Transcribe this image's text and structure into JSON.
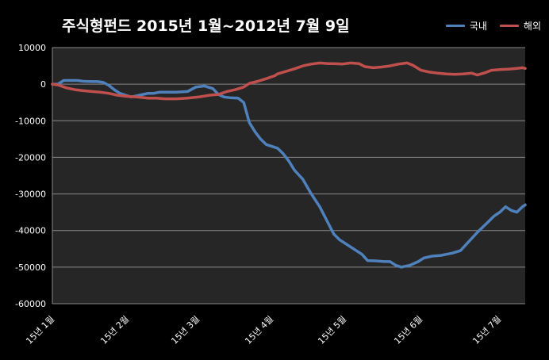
{
  "chart_data": {
    "type": "line",
    "title": "주식형펀드  2015년 1월~2012년 7월 9일",
    "xlabel": "",
    "ylabel": "",
    "ylim": [
      -60000,
      10000
    ],
    "yticks": [
      10000,
      0,
      -10000,
      -20000,
      -30000,
      -40000,
      -50000,
      -60000
    ],
    "ytick_labels": [
      "10000",
      "0",
      "-10000",
      "-20000",
      "-30000",
      "-40000",
      "-50000",
      "-60000"
    ],
    "x_categories": [
      "15년 1월",
      "15년 2월",
      "15년 3월",
      "15년 4월",
      "15년 5월",
      "15년 6월",
      "15년 7월"
    ],
    "grid": true,
    "legend_position": "top-right",
    "background": "#262626",
    "series": [
      {
        "name": "국내",
        "color": "#4F81BD",
        "points": [
          [
            0.0,
            0
          ],
          [
            0.1,
            0
          ],
          [
            0.2,
            1000
          ],
          [
            0.35,
            1000
          ],
          [
            0.45,
            1000
          ],
          [
            0.55,
            800
          ],
          [
            0.7,
            700
          ],
          [
            0.8,
            700
          ],
          [
            0.9,
            500
          ],
          [
            1.0,
            -300
          ],
          [
            1.1,
            -1500
          ],
          [
            1.2,
            -2500
          ],
          [
            1.3,
            -3000
          ],
          [
            1.4,
            -3500
          ],
          [
            1.55,
            -3000
          ],
          [
            1.7,
            -2500
          ],
          [
            1.8,
            -2500
          ],
          [
            1.9,
            -2200
          ],
          [
            2.0,
            -2200
          ],
          [
            2.2,
            -2200
          ],
          [
            2.4,
            -2000
          ],
          [
            2.55,
            -800
          ],
          [
            2.7,
            -500
          ],
          [
            2.85,
            -1200
          ],
          [
            2.95,
            -2800
          ],
          [
            3.05,
            -3500
          ],
          [
            3.15,
            -3700
          ],
          [
            3.3,
            -3800
          ],
          [
            3.4,
            -5000
          ],
          [
            3.5,
            -10500
          ],
          [
            3.6,
            -13000
          ],
          [
            3.7,
            -15000
          ],
          [
            3.8,
            -16500
          ],
          [
            3.9,
            -17000
          ],
          [
            4.0,
            -17500
          ],
          [
            4.1,
            -19000
          ],
          [
            4.2,
            -21000
          ],
          [
            4.3,
            -23500
          ],
          [
            4.45,
            -26000
          ],
          [
            4.6,
            -30000
          ],
          [
            4.75,
            -33500
          ],
          [
            4.9,
            -38000
          ],
          [
            5.0,
            -41000
          ],
          [
            5.1,
            -42500
          ],
          [
            5.2,
            -43500
          ],
          [
            5.35,
            -45000
          ],
          [
            5.5,
            -46500
          ],
          [
            5.6,
            -48200
          ],
          [
            5.75,
            -48300
          ],
          [
            5.9,
            -48500
          ],
          [
            6.0,
            -48500
          ],
          [
            6.1,
            -49500
          ],
          [
            6.2,
            -50000
          ],
          [
            6.35,
            -49500
          ],
          [
            6.5,
            -48500
          ],
          [
            6.6,
            -47500
          ],
          [
            6.75,
            -47000
          ],
          [
            6.9,
            -46800
          ],
          [
            7.0,
            -46500
          ],
          [
            7.1,
            -46200
          ],
          [
            7.25,
            -45500
          ],
          [
            7.4,
            -43000
          ],
          [
            7.55,
            -40500
          ],
          [
            7.65,
            -39000
          ],
          [
            7.75,
            -37500
          ],
          [
            7.85,
            -36000
          ],
          [
            7.95,
            -35000
          ],
          [
            8.05,
            -33500
          ],
          [
            8.15,
            -34500
          ],
          [
            8.25,
            -35000
          ],
          [
            8.35,
            -33500
          ],
          [
            8.4,
            -33000
          ]
        ]
      },
      {
        "name": "해외",
        "color": "#C0504D",
        "points": [
          [
            0.0,
            0
          ],
          [
            0.1,
            -200
          ],
          [
            0.25,
            -1000
          ],
          [
            0.4,
            -1500
          ],
          [
            0.55,
            -1800
          ],
          [
            0.7,
            -2000
          ],
          [
            0.85,
            -2200
          ],
          [
            1.0,
            -2500
          ],
          [
            1.15,
            -3000
          ],
          [
            1.3,
            -3300
          ],
          [
            1.5,
            -3500
          ],
          [
            1.7,
            -3800
          ],
          [
            1.85,
            -3800
          ],
          [
            2.0,
            -4000
          ],
          [
            2.2,
            -4000
          ],
          [
            2.4,
            -3800
          ],
          [
            2.6,
            -3500
          ],
          [
            2.8,
            -3000
          ],
          [
            2.95,
            -2800
          ],
          [
            3.1,
            -2000
          ],
          [
            3.25,
            -1500
          ],
          [
            3.4,
            -800
          ],
          [
            3.5,
            200
          ],
          [
            3.65,
            800
          ],
          [
            3.8,
            1500
          ],
          [
            3.95,
            2300
          ],
          [
            4.0,
            2800
          ],
          [
            4.15,
            3500
          ],
          [
            4.3,
            4200
          ],
          [
            4.45,
            5000
          ],
          [
            4.6,
            5500
          ],
          [
            4.75,
            5800
          ],
          [
            4.9,
            5600
          ],
          [
            5.0,
            5600
          ],
          [
            5.15,
            5500
          ],
          [
            5.3,
            5800
          ],
          [
            5.45,
            5600
          ],
          [
            5.55,
            4800
          ],
          [
            5.7,
            4500
          ],
          [
            5.85,
            4700
          ],
          [
            6.0,
            5000
          ],
          [
            6.15,
            5500
          ],
          [
            6.3,
            5800
          ],
          [
            6.4,
            5200
          ],
          [
            6.55,
            3800
          ],
          [
            6.7,
            3300
          ],
          [
            6.85,
            3000
          ],
          [
            7.0,
            2800
          ],
          [
            7.15,
            2700
          ],
          [
            7.3,
            2800
          ],
          [
            7.45,
            3000
          ],
          [
            7.55,
            2500
          ],
          [
            7.7,
            3200
          ],
          [
            7.8,
            3800
          ],
          [
            7.95,
            4000
          ],
          [
            8.1,
            4100
          ],
          [
            8.25,
            4300
          ],
          [
            8.35,
            4500
          ],
          [
            8.4,
            4300
          ]
        ]
      }
    ]
  }
}
